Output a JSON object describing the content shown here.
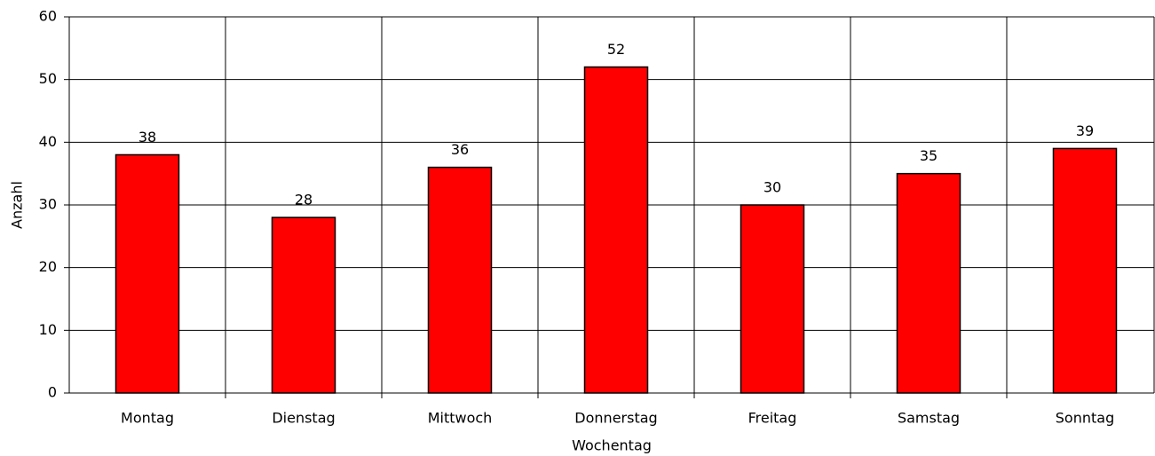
{
  "chart_data": {
    "type": "bar",
    "categories": [
      "Montag",
      "Dienstag",
      "Mittwoch",
      "Donnerstag",
      "Freitag",
      "Samstag",
      "Sonntag"
    ],
    "values": [
      38,
      28,
      36,
      52,
      30,
      35,
      39
    ],
    "color": "#ff0000",
    "x_label": "Wochentag",
    "y_label": "Anzahl",
    "ylim": [
      0,
      60
    ],
    "yticks": [
      0,
      10,
      20,
      30,
      40,
      50,
      60
    ],
    "grid": true
  }
}
